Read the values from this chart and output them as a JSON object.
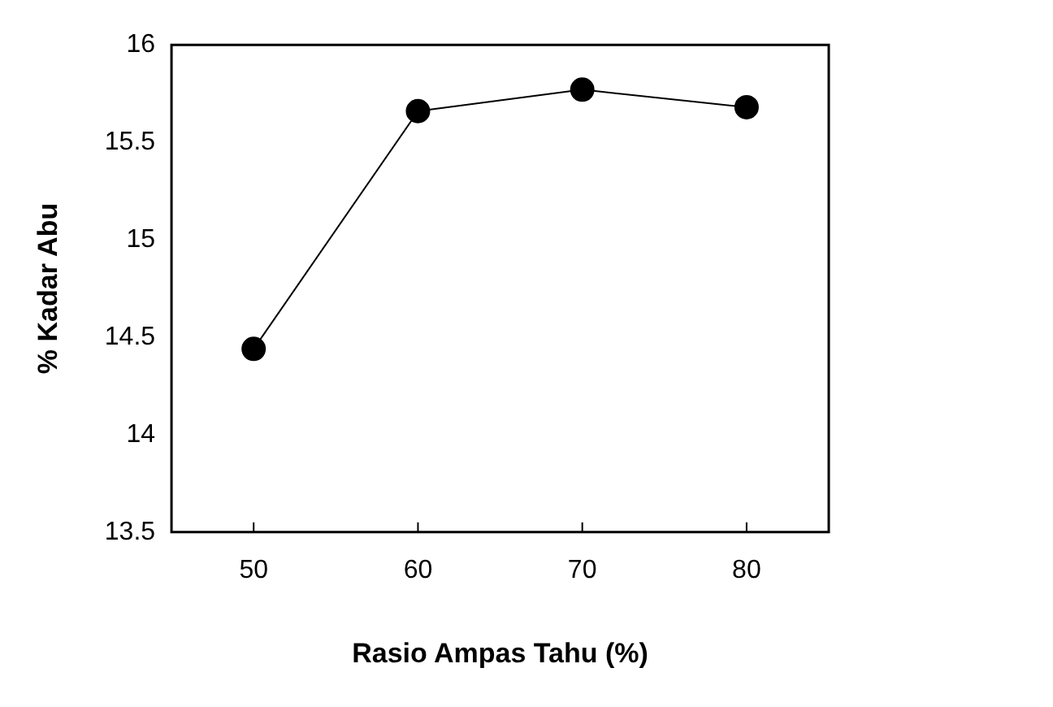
{
  "chart_data": {
    "type": "line",
    "xlabel": "Rasio Ampas Tahu (%)",
    "ylabel": "% Kadar Abu",
    "categories": [
      "50",
      "60",
      "70",
      "80"
    ],
    "series": [
      {
        "color": "#000000",
        "values": [
          14.44,
          15.66,
          15.77,
          15.68
        ]
      }
    ],
    "ylim": [
      13.5,
      16
    ],
    "yticks": [
      13.5,
      14,
      14.5,
      15,
      15.5,
      16
    ],
    "grid": false,
    "legend": false,
    "marker": "circle",
    "line_style": "solid"
  }
}
